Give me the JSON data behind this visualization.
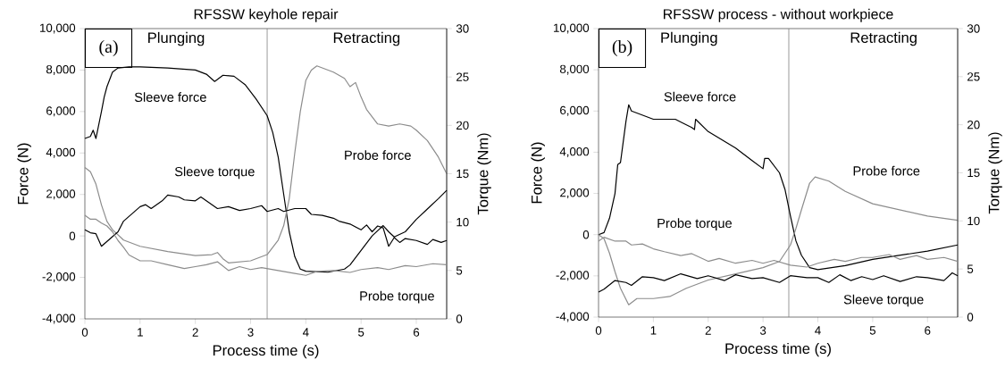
{
  "chart_data": [
    {
      "type": "line",
      "title": "RFSSW keyhole repair",
      "xlabel": "Process time (s)",
      "ylabel": "Force (N)",
      "y2label": "Torque (Nm)",
      "annotations": [
        "(a)",
        "Plunging",
        "Retracting"
      ],
      "xlim": [
        0,
        6.55
      ],
      "xticks": [
        0,
        1,
        2,
        3,
        4,
        5,
        6
      ],
      "ylim": [
        -4000,
        10000
      ],
      "yticks": [
        {
          "value": -4000,
          "label": "-4,000"
        },
        {
          "value": -2000,
          "label": "-2,000"
        },
        0,
        {
          "value": 2000,
          "label": "2,000"
        },
        {
          "value": 4000,
          "label": "4,000"
        },
        {
          "value": 6000,
          "label": "6,000"
        },
        {
          "value": 8000,
          "label": "8,000"
        },
        {
          "value": 10000,
          "label": "10,000"
        }
      ],
      "y2lim": [
        0,
        30
      ],
      "y2ticks": [
        0,
        5,
        10,
        15,
        20,
        25,
        30
      ],
      "marker": "none",
      "line_style": "solid",
      "ref_lines": [
        {
          "axis": "x",
          "value": 3.3,
          "color": "#808080"
        }
      ],
      "series": [
        {
          "name": "Sleeve force",
          "color": "#000000",
          "x": [
            0,
            0.1,
            0.15,
            0.2,
            0.3,
            0.35,
            0.4,
            0.5,
            0.6,
            0.8,
            1.0,
            1.5,
            2.0,
            2.2,
            2.35,
            2.5,
            2.7,
            2.9,
            3.1,
            3.3,
            3.4,
            3.5,
            3.6,
            3.7,
            3.8,
            3.9,
            4.0,
            4.4,
            4.7,
            4.8,
            5.0,
            5.2,
            5.4,
            5.5,
            5.6,
            5.8,
            6.0,
            6.2,
            6.4,
            6.55
          ],
          "values": [
            4700,
            4800,
            5100,
            4700,
            6000,
            6700,
            7200,
            7900,
            8100,
            8150,
            8150,
            8100,
            8000,
            7800,
            7450,
            7750,
            7700,
            7300,
            6600,
            5800,
            5000,
            3800,
            2000,
            200,
            -1000,
            -1600,
            -1700,
            -1750,
            -1600,
            -1400,
            -700,
            0,
            500,
            200,
            -50,
            200,
            800,
            1300,
            1800,
            2200
          ]
        },
        {
          "name": "Probe force",
          "color": "#8c8c8c",
          "x": [
            0,
            0.1,
            0.2,
            0.3,
            0.4,
            0.5,
            0.7,
            1.0,
            1.5,
            2.0,
            2.3,
            2.4,
            2.5,
            2.6,
            3.0,
            3.3,
            3.5,
            3.6,
            3.7,
            3.8,
            3.9,
            4.0,
            4.1,
            4.2,
            4.5,
            4.7,
            4.8,
            4.9,
            5.0,
            5.1,
            5.3,
            5.5,
            5.7,
            5.9,
            6.0,
            6.2,
            6.4,
            6.55
          ],
          "values": [
            3300,
            3100,
            2500,
            1500,
            700,
            300,
            -200,
            -500,
            -750,
            -950,
            -900,
            -800,
            -1100,
            -1300,
            -1200,
            -900,
            -200,
            500,
            1800,
            4000,
            6000,
            7500,
            8000,
            8200,
            7900,
            7600,
            7200,
            7400,
            6700,
            6100,
            5400,
            5300,
            5400,
            5300,
            5100,
            4600,
            3800,
            3000
          ]
        },
        {
          "name": "Sleeve torque",
          "color": "#000000",
          "axis": "y2",
          "x": [
            0,
            0.1,
            0.2,
            0.3,
            0.4,
            0.5,
            0.6,
            0.7,
            0.8,
            0.9,
            1.0,
            1.1,
            1.2,
            1.4,
            1.5,
            1.7,
            1.8,
            2.0,
            2.1,
            2.3,
            2.4,
            2.6,
            2.8,
            3.0,
            3.2,
            3.3,
            3.5,
            3.6,
            3.8,
            4.0,
            4.1,
            4.3,
            4.5,
            4.6,
            4.8,
            5.0,
            5.1,
            5.2,
            5.3,
            5.4,
            5.5,
            5.6,
            5.7,
            5.8,
            6.0,
            6.2,
            6.3,
            6.45,
            6.55
          ],
          "values": [
            9.2,
            8.9,
            8.8,
            7.5,
            8.0,
            8.5,
            9.0,
            10.1,
            10.6,
            11.1,
            11.6,
            11.8,
            11.4,
            12.2,
            12.8,
            12.6,
            12.3,
            12.2,
            12.6,
            11.8,
            11.4,
            11.6,
            11.2,
            11.4,
            11.7,
            11.1,
            11.4,
            11.1,
            11.4,
            11.4,
            10.8,
            10.7,
            10.4,
            10.1,
            9.8,
            9.2,
            9.7,
            9.0,
            9.6,
            9.4,
            7.5,
            8.4,
            7.9,
            8.3,
            8.1,
            7.7,
            8.2,
            7.9,
            8.1
          ]
        },
        {
          "name": "Probe torque",
          "color": "#8c8c8c",
          "axis": "y2",
          "x": [
            0,
            0.1,
            0.2,
            0.3,
            0.4,
            0.5,
            0.6,
            0.7,
            0.8,
            1.0,
            1.2,
            1.5,
            1.8,
            2.0,
            2.2,
            2.4,
            2.6,
            2.8,
            3.0,
            3.2,
            3.5,
            3.8,
            4.0,
            4.2,
            4.5,
            4.8,
            5.0,
            5.3,
            5.5,
            5.8,
            6.0,
            6.3,
            6.55
          ],
          "values": [
            10.7,
            10.3,
            10.3,
            9.9,
            9.6,
            9.0,
            8.1,
            7.4,
            6.6,
            6.0,
            6.0,
            5.6,
            5.2,
            5.4,
            5.6,
            5.9,
            5.0,
            5.4,
            5.1,
            5.3,
            5.0,
            4.7,
            4.5,
            4.9,
            5.0,
            4.8,
            5.1,
            5.3,
            5.1,
            5.5,
            5.4,
            5.7,
            5.6
          ]
        }
      ]
    },
    {
      "type": "line",
      "title": "RFSSW process - without workpiece",
      "xlabel": "Process time (s)",
      "ylabel": "Force (N)",
      "y2label": "Torque (Nm)",
      "annotations": [
        "(b)",
        "Plunging",
        "Retracting"
      ],
      "xlim": [
        0,
        6.55
      ],
      "xticks": [
        0,
        1,
        2,
        3,
        4,
        5,
        6
      ],
      "ylim": [
        -4000,
        10000
      ],
      "yticks": [
        {
          "value": -4000,
          "label": "-4,000"
        },
        {
          "value": -2000,
          "label": "-2,000"
        },
        0,
        {
          "value": 2000,
          "label": "2,000"
        },
        {
          "value": 4000,
          "label": "4,000"
        },
        {
          "value": 6000,
          "label": "6,000"
        },
        {
          "value": 8000,
          "label": "8,000"
        },
        {
          "value": 10000,
          "label": "10,000"
        }
      ],
      "y2lim": [
        0,
        30
      ],
      "y2ticks": [
        0,
        5,
        10,
        15,
        20,
        25,
        30
      ],
      "marker": "none",
      "line_style": "solid",
      "ref_lines": [
        {
          "axis": "x",
          "value": 3.47,
          "color": "#808080"
        }
      ],
      "series": [
        {
          "name": "Sleeve force",
          "color": "#000000",
          "x": [
            0,
            0.1,
            0.2,
            0.3,
            0.35,
            0.4,
            0.45,
            0.5,
            0.55,
            0.6,
            0.8,
            1.0,
            1.4,
            1.7,
            1.75,
            1.77,
            2.0,
            2.5,
            2.8,
            3.0,
            3.03,
            3.1,
            3.3,
            3.4,
            3.5,
            3.6,
            3.7,
            3.85,
            4.0,
            4.5,
            5.0,
            5.5,
            6.0,
            6.55
          ],
          "values": [
            0,
            100,
            800,
            2000,
            3400,
            3500,
            4500,
            5500,
            6300,
            6000,
            5800,
            5600,
            5600,
            5200,
            5100,
            5600,
            5000,
            4200,
            3600,
            3200,
            3700,
            3700,
            3000,
            2200,
            900,
            -300,
            -1000,
            -1600,
            -1700,
            -1500,
            -1200,
            -1000,
            -800,
            -500
          ]
        },
        {
          "name": "Probe force",
          "color": "#8c8c8c",
          "x": [
            0,
            0.1,
            0.2,
            0.3,
            0.4,
            0.55,
            0.7,
            1.0,
            1.3,
            1.6,
            2.0,
            2.5,
            3.0,
            3.3,
            3.5,
            3.6,
            3.7,
            3.85,
            3.95,
            4.2,
            4.5,
            5.0,
            5.5,
            6.0,
            6.55
          ],
          "values": [
            0,
            -200,
            -900,
            -1800,
            -2600,
            -3400,
            -3100,
            -3100,
            -3000,
            -2600,
            -2200,
            -1900,
            -1600,
            -1300,
            -500,
            300,
            1200,
            2500,
            2800,
            2600,
            2100,
            1500,
            1200,
            900,
            700
          ]
        },
        {
          "name": "Probe torque",
          "color": "#8c8c8c",
          "axis": "y2",
          "x": [
            0,
            0.1,
            0.3,
            0.5,
            0.6,
            0.8,
            1.0,
            1.2,
            1.5,
            1.7,
            2.0,
            2.2,
            2.5,
            2.8,
            3.0,
            3.2,
            3.5,
            3.8,
            4.0,
            4.3,
            4.5,
            4.8,
            5.0,
            5.3,
            5.5,
            5.8,
            6.0,
            6.3,
            6.55
          ],
          "values": [
            7.9,
            8.3,
            7.9,
            7.9,
            7.5,
            7.6,
            7.1,
            6.8,
            6.4,
            6.6,
            5.8,
            6.1,
            5.6,
            5.9,
            5.6,
            5.9,
            5.4,
            5.2,
            5.6,
            6.0,
            5.8,
            6.2,
            6.2,
            6.5,
            6.0,
            6.4,
            6.0,
            6.2,
            5.8
          ]
        },
        {
          "name": "Sleeve torque",
          "color": "#000000",
          "axis": "y2",
          "x": [
            0,
            0.1,
            0.3,
            0.5,
            0.6,
            0.8,
            1.0,
            1.2,
            1.5,
            1.8,
            2.0,
            2.3,
            2.5,
            2.8,
            3.0,
            3.3,
            3.5,
            3.8,
            4.0,
            4.2,
            4.4,
            4.6,
            4.8,
            5.0,
            5.2,
            5.5,
            5.8,
            6.0,
            6.3,
            6.45,
            6.55
          ],
          "values": [
            2.6,
            2.9,
            3.8,
            3.6,
            3.3,
            4.2,
            4.1,
            3.8,
            4.5,
            4.0,
            4.3,
            3.8,
            4.4,
            4.0,
            4.1,
            3.6,
            4.3,
            4.1,
            4.1,
            3.6,
            4.4,
            3.8,
            4.2,
            3.9,
            4.3,
            3.7,
            4.2,
            4.1,
            3.8,
            4.6,
            4.3
          ]
        }
      ]
    }
  ]
}
